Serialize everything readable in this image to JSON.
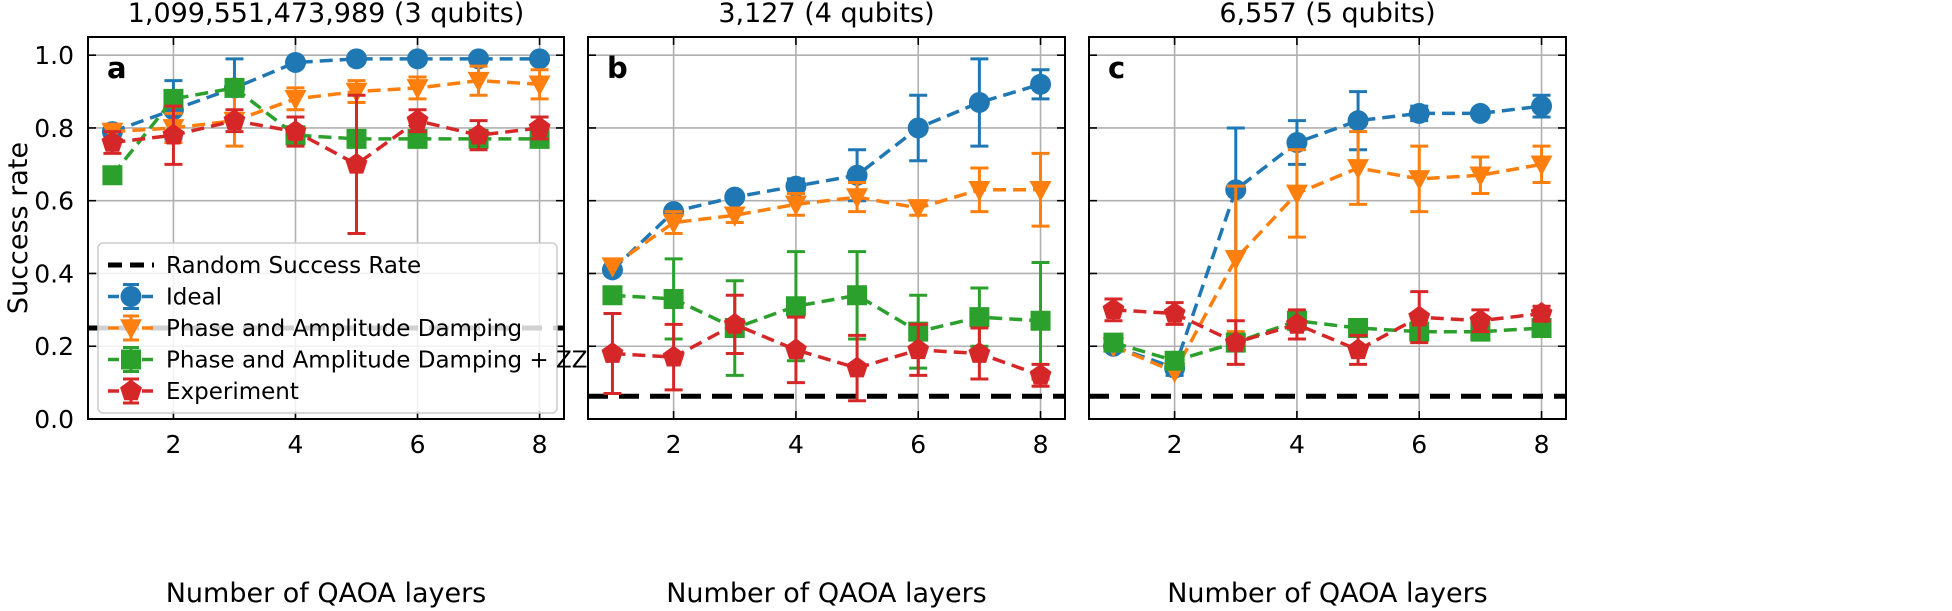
{
  "colors": {
    "ideal": "#1f77b4",
    "damping": "#ff7f0e",
    "damping_zz": "#2ca02c",
    "experiment": "#d62728",
    "random": "#000000",
    "grid": "#b0b0b0"
  },
  "chart_data": [
    {
      "type": "line",
      "letter": "a",
      "title": "1,099,551,473,989 (3 qubits)",
      "xlabel": "Number of QAOA layers",
      "ylabel": "Success rate",
      "xlim": [
        0.6,
        8.4
      ],
      "ylim": [
        0,
        1.05
      ],
      "xticks": [
        2,
        4,
        6,
        8
      ],
      "yticks": [
        0.0,
        0.2,
        0.4,
        0.6,
        0.8,
        1.0
      ],
      "ytick_labels": [
        "0.0",
        "0.2",
        "0.4",
        "0.6",
        "0.8",
        "1.0"
      ],
      "random_success_rate": 0.25,
      "x": [
        1,
        2,
        3,
        4,
        5,
        6,
        7,
        8
      ],
      "series": [
        {
          "key": "ideal",
          "name": "Ideal",
          "marker": "circle",
          "values": [
            0.79,
            0.85,
            0.91,
            0.98,
            0.99,
            0.99,
            0.99,
            0.99
          ],
          "errors": [
            0.01,
            0.08,
            0.08,
            0.01,
            0.01,
            0.01,
            0.01,
            0.01
          ]
        },
        {
          "key": "damping",
          "name": "Phase and Amplitude Damping",
          "marker": "triangle-down",
          "values": [
            0.79,
            0.8,
            0.82,
            0.88,
            0.9,
            0.91,
            0.93,
            0.92
          ],
          "errors": [
            0.02,
            0.04,
            0.07,
            0.03,
            0.03,
            0.03,
            0.04,
            0.04
          ]
        },
        {
          "key": "damping_zz",
          "name": "Phase and Amplitude Damping + ZZ",
          "marker": "square",
          "values": [
            0.67,
            0.88,
            0.91,
            0.78,
            0.77,
            0.77,
            0.77,
            0.77
          ],
          "errors": [
            0.01,
            0.02,
            0.02,
            0.01,
            0.01,
            0.01,
            0.01,
            0.01
          ]
        },
        {
          "key": "experiment",
          "name": "Experiment",
          "marker": "pentagon",
          "values": [
            0.76,
            0.78,
            0.82,
            0.79,
            0.7,
            0.82,
            0.78,
            0.8
          ],
          "errors": [
            0.03,
            0.08,
            0.03,
            0.04,
            0.19,
            0.03,
            0.04,
            0.03
          ]
        }
      ]
    },
    {
      "type": "line",
      "letter": "b",
      "title": "3,127 (4 qubits)",
      "xlabel": "Number of QAOA layers",
      "ylabel": "",
      "xlim": [
        0.6,
        8.4
      ],
      "ylim": [
        0,
        1.05
      ],
      "xticks": [
        2,
        4,
        6,
        8
      ],
      "yticks": [
        0.0,
        0.2,
        0.4,
        0.6,
        0.8,
        1.0
      ],
      "ytick_labels": [],
      "random_success_rate": 0.0625,
      "x": [
        1,
        2,
        3,
        4,
        5,
        6,
        7,
        8
      ],
      "series": [
        {
          "key": "ideal",
          "name": "Ideal",
          "marker": "circle",
          "values": [
            0.41,
            0.57,
            0.61,
            0.64,
            0.67,
            0.8,
            0.87,
            0.92
          ],
          "errors": [
            0.01,
            0.01,
            0.01,
            0.02,
            0.07,
            0.09,
            0.12,
            0.04
          ]
        },
        {
          "key": "damping",
          "name": "Phase and Amplitude Damping",
          "marker": "triangle-down",
          "values": [
            0.42,
            0.54,
            0.56,
            0.59,
            0.61,
            0.58,
            0.63,
            0.63
          ],
          "errors": [
            0.01,
            0.03,
            0.02,
            0.03,
            0.04,
            0.02,
            0.06,
            0.1
          ]
        },
        {
          "key": "damping_zz",
          "name": "Phase and Amplitude Damping + ZZ",
          "marker": "square",
          "values": [
            0.34,
            0.33,
            0.25,
            0.31,
            0.34,
            0.24,
            0.28,
            0.27
          ],
          "errors": [
            0.01,
            0.11,
            0.13,
            0.15,
            0.12,
            0.1,
            0.08,
            0.16
          ]
        },
        {
          "key": "experiment",
          "name": "Experiment",
          "marker": "pentagon",
          "values": [
            0.18,
            0.17,
            0.26,
            0.19,
            0.14,
            0.19,
            0.18,
            0.12
          ],
          "errors": [
            0.11,
            0.09,
            0.08,
            0.09,
            0.09,
            0.07,
            0.07,
            0.03
          ]
        }
      ]
    },
    {
      "type": "line",
      "letter": "c",
      "title": "6,557 (5 qubits)",
      "xlabel": "Number of QAOA layers",
      "ylabel": "",
      "xlim": [
        0.6,
        8.4
      ],
      "ylim": [
        0,
        1.05
      ],
      "xticks": [
        2,
        4,
        6,
        8
      ],
      "yticks": [
        0.0,
        0.2,
        0.4,
        0.6,
        0.8,
        1.0
      ],
      "ytick_labels": [],
      "random_success_rate": 0.0625,
      "x": [
        1,
        2,
        3,
        4,
        5,
        6,
        7,
        8
      ],
      "series": [
        {
          "key": "ideal",
          "name": "Ideal",
          "marker": "circle",
          "values": [
            0.2,
            0.14,
            0.63,
            0.76,
            0.82,
            0.84,
            0.84,
            0.86
          ],
          "errors": [
            0.01,
            0.02,
            0.17,
            0.06,
            0.08,
            0.02,
            0.01,
            0.03
          ]
        },
        {
          "key": "damping",
          "name": "Phase and Amplitude Damping",
          "marker": "triangle-down",
          "values": [
            0.2,
            0.13,
            0.44,
            0.62,
            0.69,
            0.66,
            0.67,
            0.7
          ],
          "errors": [
            0.01,
            0.01,
            0.2,
            0.12,
            0.1,
            0.09,
            0.05,
            0.05
          ]
        },
        {
          "key": "damping_zz",
          "name": "Phase and Amplitude Damping + ZZ",
          "marker": "square",
          "values": [
            0.21,
            0.16,
            0.21,
            0.27,
            0.25,
            0.24,
            0.24,
            0.25
          ],
          "errors": [
            0.01,
            0.01,
            0.01,
            0.01,
            0.01,
            0.01,
            0.01,
            0.01
          ]
        },
        {
          "key": "experiment",
          "name": "Experiment",
          "marker": "pentagon",
          "values": [
            0.3,
            0.29,
            0.21,
            0.26,
            0.19,
            0.28,
            0.27,
            0.29
          ],
          "errors": [
            0.03,
            0.03,
            0.06,
            0.04,
            0.04,
            0.07,
            0.03,
            0.02
          ]
        }
      ]
    }
  ],
  "legend": {
    "location": "lower-left of panel a",
    "entries": [
      {
        "key": "random",
        "label": "Random Success Rate"
      },
      {
        "key": "ideal",
        "label": "Ideal"
      },
      {
        "key": "damping",
        "label": "Phase and Amplitude Damping"
      },
      {
        "key": "damping_zz",
        "label": "Phase and Amplitude Damping + ZZ"
      },
      {
        "key": "experiment",
        "label": "Experiment"
      }
    ]
  }
}
